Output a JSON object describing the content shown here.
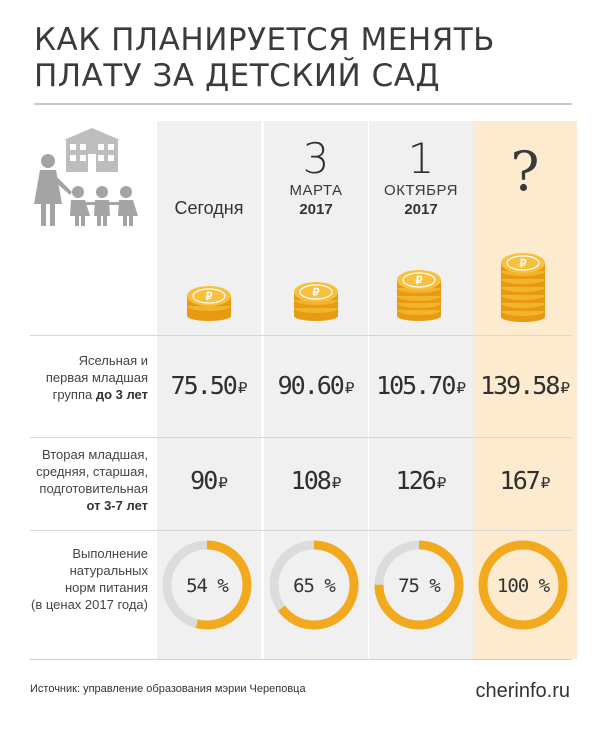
{
  "header": {
    "title_line1": "КАК ПЛАНИРУЕТСЯ МЕНЯТЬ",
    "title_line2": "ПЛАТУ ЗА ДЕТСКИЙ САД"
  },
  "columns": [
    {
      "label": "Сегодня"
    },
    {
      "number": "3",
      "month": "МАРТА",
      "year": "2017"
    },
    {
      "number": "1",
      "month": "ОКТЯБРЯ",
      "year": "2017"
    },
    {
      "symbol": "?"
    }
  ],
  "rows": {
    "nursery": {
      "label_line1": "Ясельная и",
      "label_line2": "первая младшая",
      "label_line3_plain": "группа ",
      "label_line3_bold": "до 3 лет",
      "values": [
        "75.50",
        "90.60",
        "105.70",
        "139.58"
      ]
    },
    "older": {
      "label_line1": "Вторая младшая,",
      "label_line2": "средняя, старшая,",
      "label_line3": "подготовительная",
      "label_line4_bold": "от 3-7 лет",
      "values": [
        "90",
        "108",
        "126",
        "167"
      ]
    },
    "nutrition": {
      "label_line1": "Выполнение",
      "label_line2": "натуральных",
      "label_line3": "норм питания",
      "label_line4": "(в ценах 2017 года)",
      "values": [
        "54 %",
        "65 %",
        "75 %",
        "100 %"
      ],
      "fractions": [
        0.54,
        0.65,
        0.75,
        1.0
      ]
    }
  },
  "currency": "₽",
  "footer": {
    "source": "Источник: управление образования мэрии Череповца",
    "brand": "cherinfo.ru"
  },
  "colors": {
    "accent": "#f2a91e",
    "ring_track": "#dcdcdc",
    "column_grey": "#f0f0f0",
    "column_highlight": "#fdebd0"
  }
}
